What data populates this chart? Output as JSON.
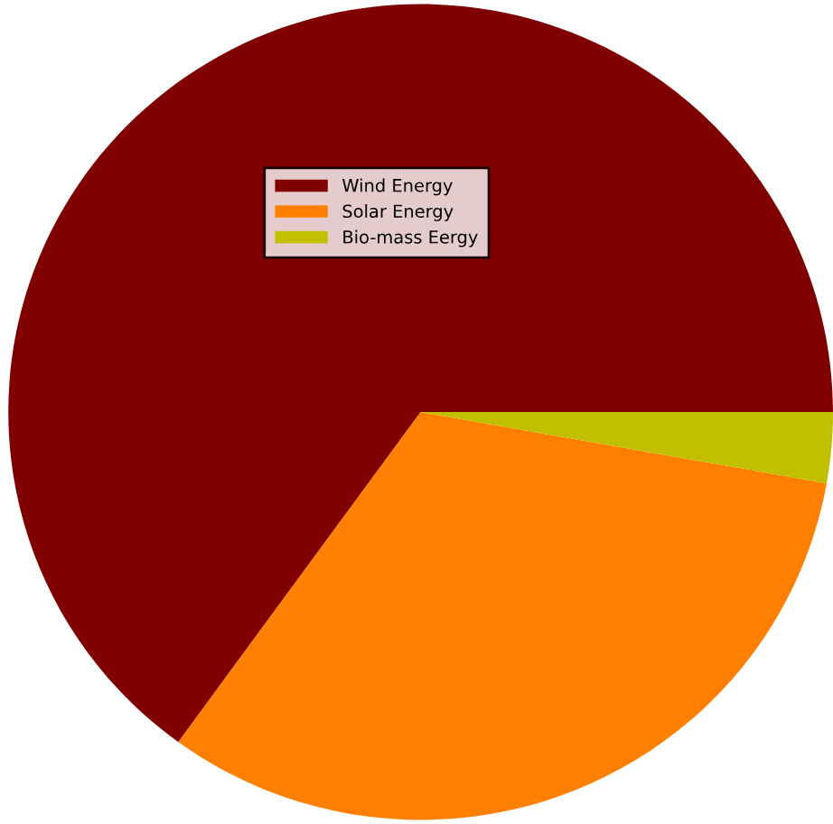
{
  "chart_data": {
    "type": "pie",
    "categories": [
      "Wind Energy",
      "Solar Energy",
      "Bio-mass Eergy"
    ],
    "values": [
      65.0,
      32.2,
      2.8
    ],
    "colors": [
      "#800000",
      "#ff8000",
      "#c0c000"
    ],
    "legend": "top left"
  }
}
